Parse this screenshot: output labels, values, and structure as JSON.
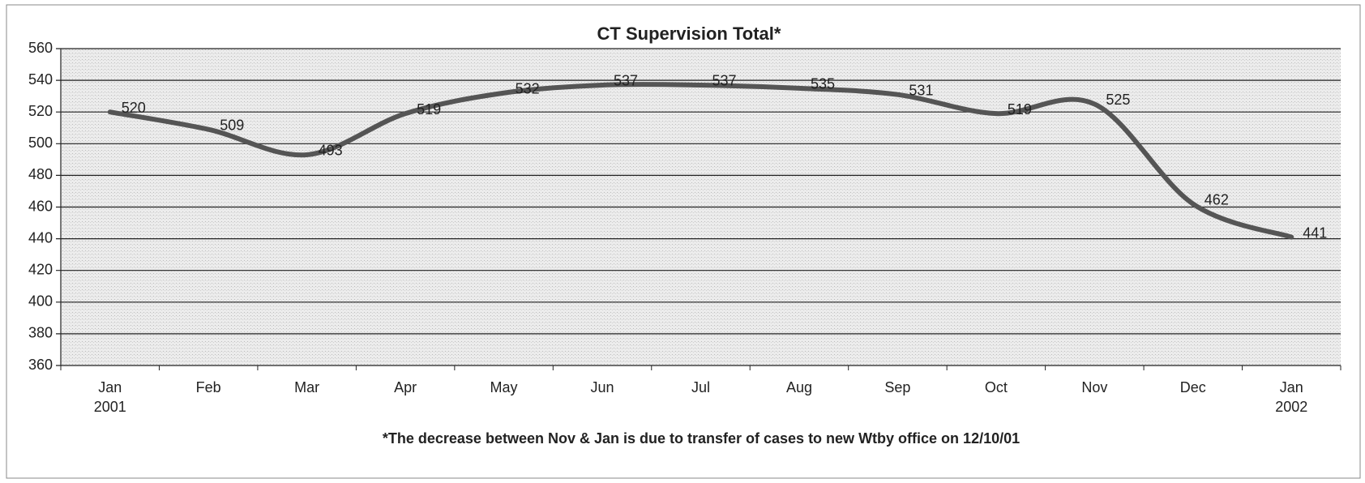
{
  "chart_data": {
    "type": "line",
    "title": "CT Supervision Total*",
    "note": "*The decrease between Nov & Jan is due to transfer of cases to new Wtby office on 12/10/01",
    "categories": [
      "Jan\n2001",
      "Feb",
      "Mar",
      "Apr",
      "May",
      "Jun",
      "Jul",
      "Aug",
      "Sep",
      "Oct",
      "Nov",
      "Dec",
      "Jan\n2002"
    ],
    "series": [
      {
        "name": "CT Supervision Total",
        "color": "#555555",
        "values": [
          520,
          509,
          493,
          519,
          532,
          537,
          537,
          535,
          531,
          519,
          525,
          462,
          441
        ]
      }
    ],
    "ylim": [
      360,
      560
    ],
    "yticks": [
      360,
      380,
      400,
      420,
      440,
      460,
      480,
      500,
      520,
      540,
      560
    ],
    "grid": true
  }
}
